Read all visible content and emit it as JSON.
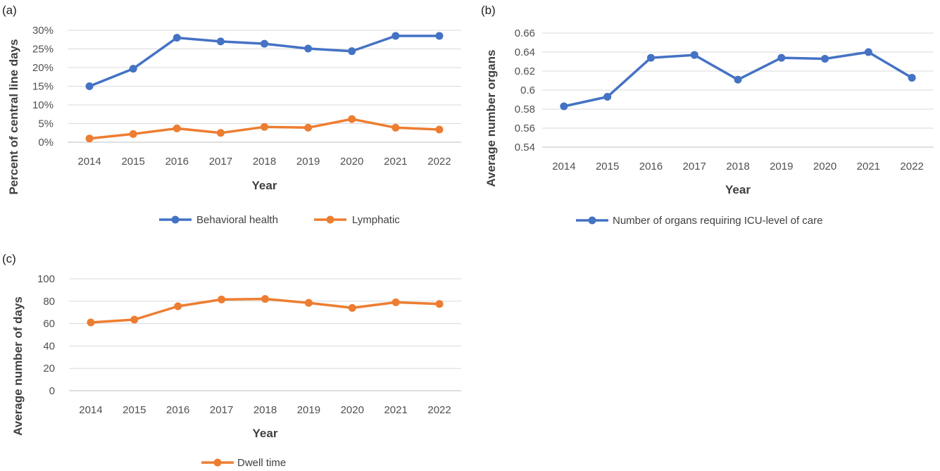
{
  "chart_data": [
    {
      "panel": "(a)",
      "type": "line",
      "categories": [
        "2014",
        "2015",
        "2016",
        "2017",
        "2018",
        "2019",
        "2020",
        "2021",
        "2022"
      ],
      "ylim": [
        0,
        30
      ],
      "yticks": [
        0,
        5,
        10,
        15,
        20,
        25,
        30
      ],
      "ytick_labels": [
        "0%",
        "5%",
        "10%",
        "15%",
        "20%",
        "25%",
        "30%"
      ],
      "xlabel": "Year",
      "ylabel": "Percent of central line days",
      "grid": true,
      "legend": "bottom",
      "series": [
        {
          "name": "Behavioral health",
          "color": "#4472c4",
          "values": [
            15.0,
            19.7,
            28.0,
            27.0,
            26.4,
            25.1,
            24.4,
            28.5,
            28.5
          ]
        },
        {
          "name": "Lymphatic",
          "color": "#ed7d31",
          "values": [
            1.0,
            2.2,
            3.7,
            2.5,
            4.1,
            3.9,
            6.2,
            3.9,
            3.4
          ]
        }
      ]
    },
    {
      "panel": "(b)",
      "type": "line",
      "categories": [
        "2014",
        "2015",
        "2016",
        "2017",
        "2018",
        "2019",
        "2020",
        "2021",
        "2022"
      ],
      "ylim": [
        0.54,
        0.66
      ],
      "yticks": [
        0.54,
        0.56,
        0.58,
        0.6,
        0.62,
        0.64,
        0.66
      ],
      "ytick_labels": [
        "0.54",
        "0.56",
        "0.58",
        "0.6",
        "0.62",
        "0.64",
        "0.66"
      ],
      "xlabel": "Year",
      "ylabel": "Average number organs",
      "grid": true,
      "legend": "bottom",
      "series": [
        {
          "name": "Number of organs requiring ICU-level of care",
          "color": "#4472c4",
          "values": [
            0.583,
            0.593,
            0.634,
            0.637,
            0.611,
            0.634,
            0.633,
            0.64,
            0.613
          ]
        }
      ]
    },
    {
      "panel": "(c)",
      "type": "line",
      "categories": [
        "2014",
        "2015",
        "2016",
        "2017",
        "2018",
        "2019",
        "2020",
        "2021",
        "2022"
      ],
      "ylim": [
        0,
        100
      ],
      "yticks": [
        0,
        20,
        40,
        60,
        80,
        100
      ],
      "ytick_labels": [
        "0",
        "20",
        "40",
        "60",
        "80",
        "100"
      ],
      "xlabel": "Year",
      "ylabel": "Average number of days",
      "grid": true,
      "legend": "bottom",
      "series": [
        {
          "name": "Dwell time",
          "color": "#ed7d31",
          "values": [
            61,
            63.5,
            75.5,
            81.5,
            82,
            78.5,
            74,
            79,
            77.5
          ]
        }
      ]
    }
  ]
}
